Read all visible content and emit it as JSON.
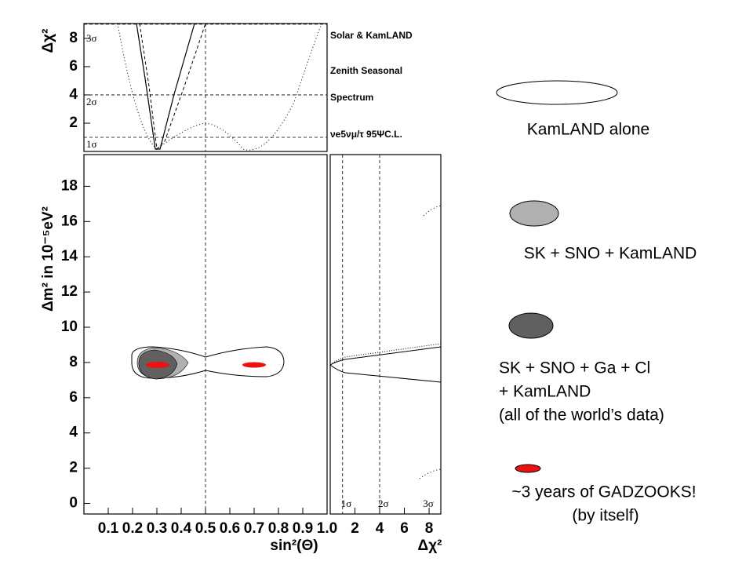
{
  "chart_data": [
    {
      "type": "line",
      "ylabel": "Δχ²",
      "xlim": [
        0,
        1
      ],
      "ylim": [
        0,
        9.05
      ],
      "yticks": [
        2,
        4,
        6,
        8
      ],
      "vline": 0.5,
      "sigma_lines": [
        {
          "value": 9,
          "label": "3σ"
        },
        {
          "value": 4,
          "label": "2σ"
        },
        {
          "value": 1,
          "label": "1σ"
        }
      ],
      "legend": [
        "Solar & KamLAND",
        "Zenith Seasonal",
        "Spectrum",
        "νe5νμ/τ 95ΨC.L."
      ]
    },
    {
      "type": "contour",
      "ylabel": "Δm² in 10⁻⁵eV²",
      "xlabel": "sin²(Θ)",
      "xlim": [
        0,
        1
      ],
      "ylim": [
        -0.6,
        19.8
      ],
      "xticks": [
        0.1,
        0.2,
        0.3,
        0.4,
        0.5,
        0.6,
        0.7,
        0.8,
        0.9,
        {
          "value": 1,
          "label": "1.0"
        }
      ],
      "yticks": [
        0,
        2,
        4,
        6,
        8,
        10,
        12,
        14,
        16,
        18
      ],
      "vline": 0.5
    },
    {
      "type": "line",
      "xlabel": "Δχ²",
      "xlim": [
        0,
        8.95
      ],
      "ylim": [
        -0.6,
        19.8
      ],
      "xticks": [
        2,
        4,
        6,
        8
      ],
      "sigma_lines": [
        {
          "value": 1,
          "label": "1σ"
        },
        {
          "value": 4,
          "label": "2σ"
        },
        {
          "value": 9,
          "label": "3σ"
        }
      ]
    }
  ],
  "legend_panel": [
    {
      "label": [
        "KamLAND alone"
      ],
      "color": "#ffffff"
    },
    {
      "label": [
        "SK + SNO + KamLAND"
      ],
      "color": "#b0b0b0"
    },
    {
      "label": [
        "SK + SNO + Ga + Cl",
        "+ KamLAND",
        "(all of the world’s data)"
      ],
      "color": "#606060"
    },
    {
      "label": [
        "~3 years of GADZOOKS!",
        "(by itself)"
      ],
      "color": "#ee1111"
    }
  ]
}
